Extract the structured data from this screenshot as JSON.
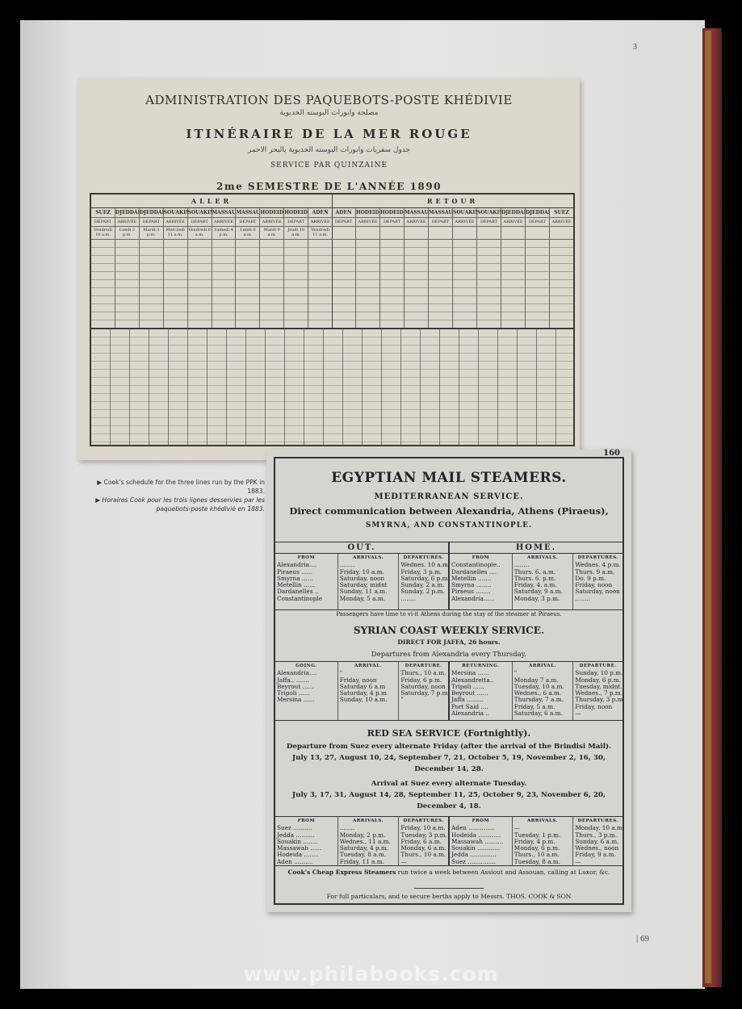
{
  "page": {
    "number_top": "3",
    "number_bottom": "| 69",
    "watermark": "www.philabooks.com"
  },
  "colors": {
    "page": "#e2e3e2",
    "paper_old": "#dcd8cc",
    "book_cover": "#7a2e2e",
    "ink": "#222222"
  },
  "timetable_1890": {
    "title": "ADMINISTRATION DES PAQUEBOTS-POSTE KHÉDIVIE",
    "subtitle": "ITINÉRAIRE DE LA MER ROUGE",
    "service": "SERVICE PAR QUINZAINE",
    "semester": "2me SEMESTRE DE L'ANNÉE 1890",
    "aller": {
      "label": "ALLER",
      "stations": [
        {
          "name": "SUEZ",
          "sub": "DÉPART",
          "day": "Vendredi 10 a.m."
        },
        {
          "name": "DJEDDAH",
          "sub": "ARRIVÉE",
          "day": "Lundi 2 p.m."
        },
        {
          "name": "DJEDDAH",
          "sub": "DÉPART",
          "day": "Mardi 3 p.m."
        },
        {
          "name": "SOUAKIN",
          "sub": "ARRIVÉE",
          "day": "Mercredi 11 a.m."
        },
        {
          "name": "SOUAKIN",
          "sub": "DÉPART",
          "day": "Vendredi 6 a.m."
        },
        {
          "name": "MASSAUA",
          "sub": "ARRIVÉE",
          "day": "Samedi 4 p.m."
        },
        {
          "name": "MASSAUA",
          "sub": "DÉPART",
          "day": "Lundi 6 a.m."
        },
        {
          "name": "HODEIDAH",
          "sub": "ARRIVÉE",
          "day": "Mardi 9 a.m."
        },
        {
          "name": "HODEIDAH",
          "sub": "DÉPART",
          "day": "Jeudi 10 a.m."
        },
        {
          "name": "ADEN",
          "sub": "ARRIVÉE",
          "day": "Vendredi 11 a.m."
        }
      ]
    },
    "retour": {
      "label": "RETOUR",
      "stations": [
        {
          "name": "ADEN",
          "sub": "DÉPART"
        },
        {
          "name": "HODEIDAH",
          "sub": "ARRIVÉE"
        },
        {
          "name": "HODEIDAH",
          "sub": "DÉPART"
        },
        {
          "name": "MASSAUA",
          "sub": "ARRIVÉE"
        },
        {
          "name": "MASSAUA",
          "sub": "DÉPART"
        },
        {
          "name": "SOUAKIN",
          "sub": "ARRIVÉE"
        },
        {
          "name": "SOUAKIN",
          "sub": "DÉPART"
        },
        {
          "name": "DJEDDAH",
          "sub": "ARRIVÉE"
        },
        {
          "name": "DJEDDAH",
          "sub": "DÉPART"
        },
        {
          "name": "SUEZ",
          "sub": "ARRIVÉE"
        }
      ]
    }
  },
  "caption": {
    "en": "▶ Cook's schedule for the three lines run by the PPK in 1883.",
    "fr": "▶ Horaires Cook pour les trois lignes desservies par les paquebots-poste khédivié en 1883."
  },
  "cook_schedule": {
    "page_number": "160",
    "title": "EGYPTIAN MAIL STEAMERS.",
    "med_heading": "MEDITERRANEAN SERVICE.",
    "med_line1": "Direct communication between Alexandria, Athens (Piraeus),",
    "med_line2": "SMYRNA, AND CONSTANTINOPLE.",
    "med_table": {
      "out": {
        "label": "OUT.",
        "headers": [
          "FROM",
          "ARRIVALS.",
          "DEPARTURES."
        ],
        "from": [
          "Alexandria....",
          "Piraeus ......",
          "Smyrna ......",
          "Metellin ......",
          "Dardanelles ..",
          "Constantinople"
        ],
        "arrivals": [
          "........",
          "Friday, 10 a.m.",
          "Saturday, noon",
          "Saturday, midnt",
          "Sunday, 11 a.m.",
          "Monday, 5 a.m."
        ],
        "departures": [
          "Wednes. 10 a.m.",
          "Friday, 3 p.m.",
          "Saturday, 6 p.m.",
          "Sunday, 2 a.m.",
          "Sunday, 2 p.m.",
          "........"
        ]
      },
      "home": {
        "label": "HOME.",
        "headers": [
          "FROM",
          "ARRIVALS.",
          "DEPARTURES."
        ],
        "from": [
          "Constantinople..",
          "Dardanelles ....",
          "Metellin .......",
          "Smyrna ........",
          "Piraeus ........",
          "Alexandria......"
        ],
        "arrivals": [
          "........",
          "Thurs. 6. a.m.",
          "Thurs. 6. p.m.",
          "Friday, 4. a.m.",
          "Saturday, 9 a.m.",
          "Monday, 3 p.m."
        ],
        "departures": [
          "Wednes. 4 p.m.",
          "Thurs. 9 a.m.",
          "Do. 9 p.m.",
          "Friday, noon",
          "Saturday, noon",
          "........"
        ]
      }
    },
    "med_note": "Passengers have time to vi-it Athens during the stay of the steamer at Piraeus.",
    "syrian_heading": "SYRIAN COAST WEEKLY SERVICE.",
    "syrian_sub": "DIRECT FOR JAFFA, 26 hours.",
    "syrian_dep": "Departures from Alexandria every Thursday.",
    "syrian_table": {
      "going": {
        "headers": [
          "GOING.",
          "ARRIVAL.",
          "DEPARTURE."
        ],
        "from": [
          "Alexandria....",
          "Jaffa.. .......",
          "Beyrout ......",
          "Tripoli ......",
          "Mersina ......"
        ],
        "arrivals": [
          "\"",
          "Friday, noon",
          "Saturday 6 a.m",
          "Saturday, 4 p.m",
          "Sunday, 10 a.m."
        ],
        "departures": [
          "Thurs., 10 a.m.",
          "Friday, 6 p.m.",
          "Saturday, noon",
          "Saturday, 7 p.m.",
          "\""
        ]
      },
      "returning": {
        "headers": [
          "RETURNING.",
          "ARRIVAL.",
          "DEPARTURE."
        ],
        "from": [
          "Mersina ......",
          "Alexandretta..",
          "Tripoli ......",
          "Beyrout ......",
          "Jaffa .........",
          "Port Said ....",
          "Alexandria .."
        ],
        "arrivals": [
          "\"",
          "Monday 7 a.m.",
          "Tuesday, 10 a.m.",
          "Wednes., 6 a.m.",
          "Thursday, 7 a.m.",
          "Friday, 5 a.m.",
          "Saturday, 6 a.m."
        ],
        "departures": [
          "Sunday, 10 p.m.",
          "Monday, 6 p.m.",
          "Tuesday, midnt.",
          "Wednes., 7 p.m.",
          "Thursday, 3 p.m.",
          "Friday, noon",
          "—"
        ]
      }
    },
    "red_heading": "RED SEA SERVICE (Fortnightly).",
    "red_line1": "Departure from Suez every alternate Friday (after the arrival of the Brindisi Mail).",
    "red_line2": "July 13, 27, August 10, 24, September 7, 21, October 5, 19, November 2, 16, 30,",
    "red_line3": "December 14, 28.",
    "red_line4": "Arrival at Suez every alternate Tuesday.",
    "red_line5": "July 3, 17, 31, August 14, 28, September 11, 25, October 9, 23, November 6, 20,",
    "red_line6": "December 4, 18.",
    "red_table": {
      "out": {
        "headers": [
          "FROM",
          "ARRIVALS.",
          "DEPARTURES."
        ],
        "from": [
          "Suez ..........",
          "Jedda ..........",
          "Souakin ........",
          "Massawah ......",
          "Hodeida ........",
          "Aden .........."
        ],
        "arrivals": [
          "........",
          "Monday, 2 p.m.",
          "Wednes., 11 a.m.",
          "Saturday, 4 p.m.",
          "Tuesday, 8 a.m.",
          "Friday, 11 a.m."
        ],
        "departures": [
          "Friday, 10 a.m.",
          "Tuesday, 3 p.m.",
          "Friday, 6 a.m.",
          "Monday, 6 a.m.",
          "Thurs., 10 a.m.",
          "—"
        ]
      },
      "home": {
        "headers": [
          "FROM",
          "ARRIVALS.",
          "DEPARTURES."
        ],
        "from": [
          "Aden ..............",
          "Hodeida ............",
          "Massawah ..........",
          "Souakin ............",
          "Jedda ..............",
          "Suez ..............."
        ],
        "arrivals": [
          "—",
          "Tuesday, 1 p.m.",
          "Friday, 4 p.m.",
          "Monday, 6 p.m.",
          "Thurs., 10 a.m.",
          "Tuesday, 8 a.m."
        ],
        "departures": [
          "Monday, 10 a.m.",
          "Thurs., 3 p.m.",
          "Sunday, 6 a.m.",
          "Wednes., noon",
          "Friday, 9 a.m.",
          "—"
        ]
      }
    },
    "cook_note_bold": "Cook's Cheap Express Steamers",
    "cook_note": " run twice a week between Assiout and Assouan, calling at Luxor, &c.",
    "footer": "For full particulars, and to secure berths apply to Messrs. THOS. COOK & SON"
  }
}
